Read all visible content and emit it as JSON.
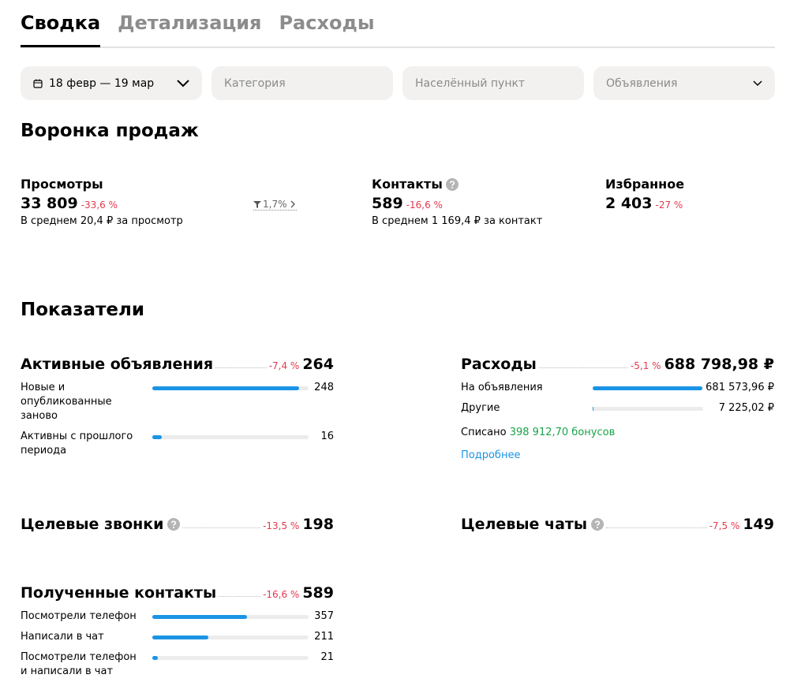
{
  "tabs": [
    "Сводка",
    "Детализация",
    "Расходы"
  ],
  "filters": {
    "period": "18 февр — 19 мар",
    "category": "Категория",
    "locality": "Населённый пункт",
    "ads": "Объявления"
  },
  "funnel": {
    "title": "Воронка продаж",
    "items": [
      {
        "name": "Просмотры",
        "value": "33 809",
        "change": "-33,6 %",
        "note": "В среднем 20,4 ₽ за просмотр"
      },
      {
        "name": "Контакты",
        "value": "589",
        "change": "-16,6 %",
        "note": "В среднем 1 169,4 ₽ за контакт"
      },
      {
        "name": "Избранное",
        "value": "2 403",
        "change": "-27 %"
      }
    ],
    "conversion": "1,7%"
  },
  "metrics": {
    "title": "Показатели",
    "blocks": [
      {
        "title": "Активные объявления",
        "change": "-7,4 %",
        "total": 264,
        "rows": [
          {
            "label": "Новые и опубликованные заново",
            "value": 248
          },
          {
            "label": "Активны с прошлого периода",
            "value": 16
          }
        ]
      },
      {
        "title": "Расходы",
        "change": "-5,1 %",
        "total": 688798.98,
        "total_label": "688 798,98 ₽",
        "rows": [
          {
            "label": "На объявления",
            "value": 681573.96,
            "value_label": "681 573,96 ₽"
          },
          {
            "label": "Другие",
            "value": 7225.02,
            "value_label": "7 225,02 ₽"
          }
        ],
        "written_off": "Списано",
        "bonuses": "398 912,70 бонусов",
        "more": "Подробнее"
      },
      {
        "title": "Целевые звонки",
        "change": "-13,5 %",
        "total": 198
      },
      {
        "title": "Целевые чаты",
        "change": "-7,5 %",
        "total": 149
      },
      {
        "title": "Полученные контакты",
        "change": "-16,6 %",
        "total": 589,
        "rows": [
          {
            "label": "Посмотрели телефон",
            "value": 357
          },
          {
            "label": "Написали в чат",
            "value": 211
          },
          {
            "label": "Посмотрели телефон и написали в чат",
            "value": 21
          }
        ]
      }
    ]
  }
}
